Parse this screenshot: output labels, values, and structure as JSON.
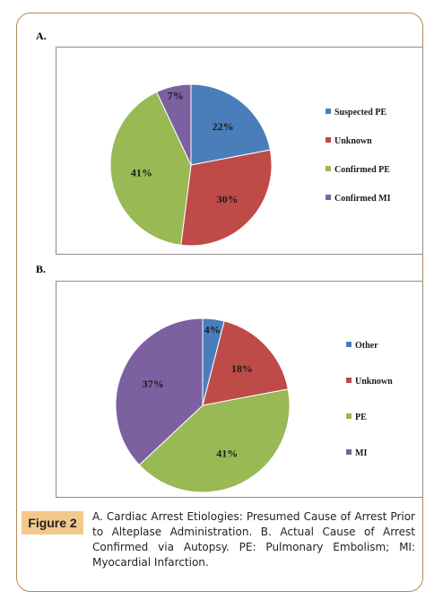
{
  "figure": {
    "tag": "Figure 2",
    "caption": "A. Cardiac Arrest Etiologies: Presumed Cause of Arrest Prior to Alteplase Administration.  B. Actual Cause of Arrest Confirmed via Autopsy. PE: Pulmonary Embolism; MI: Myocardial Infarction."
  },
  "chart_data": [
    {
      "type": "pie",
      "panel_label": "A.",
      "categories": [
        "Suspected PE",
        "Unknown",
        "Confirmed PE",
        "Confirmed MI"
      ],
      "values": [
        22,
        30,
        41,
        7
      ],
      "data_labels": [
        "22%",
        "30%",
        "41%",
        "7%"
      ],
      "colors": [
        "#4a7ebb",
        "#be4b48",
        "#98b954",
        "#7d60a0"
      ],
      "legend": "right",
      "title": ""
    },
    {
      "type": "pie",
      "panel_label": "B.",
      "categories": [
        "Other",
        "Unknown",
        "PE",
        "MI"
      ],
      "values": [
        4,
        18,
        41,
        37
      ],
      "data_labels": [
        "4%",
        "18%",
        "41%",
        "37%"
      ],
      "colors": [
        "#4a7ebb",
        "#be4b48",
        "#98b954",
        "#7d60a0"
      ],
      "legend": "right",
      "title": ""
    }
  ]
}
